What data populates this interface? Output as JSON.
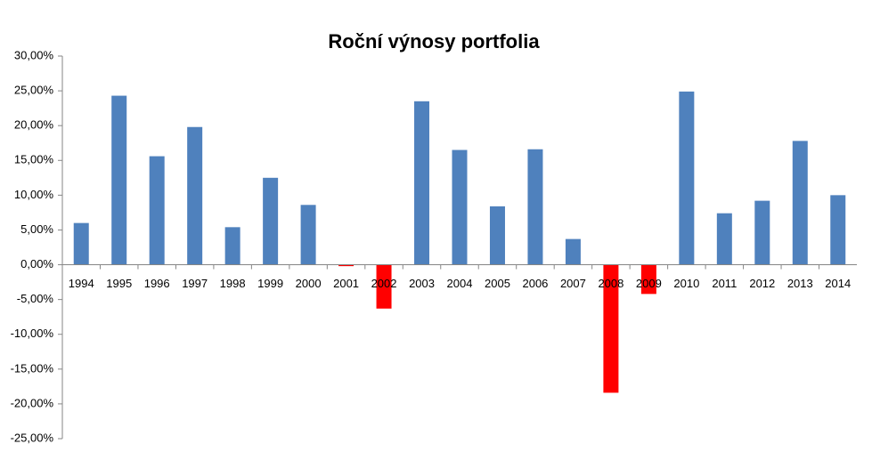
{
  "chart_data": {
    "type": "bar",
    "title": "Roční výnosy portfolia",
    "categories": [
      "1994",
      "1995",
      "1996",
      "1997",
      "1998",
      "1999",
      "2000",
      "2001",
      "2002",
      "2003",
      "2004",
      "2005",
      "2006",
      "2007",
      "2008",
      "2009",
      "2010",
      "2011",
      "2012",
      "2013",
      "2014"
    ],
    "values": [
      6.0,
      24.3,
      15.6,
      19.8,
      5.4,
      12.5,
      8.6,
      -0.2,
      -6.3,
      23.5,
      16.5,
      8.4,
      16.6,
      3.7,
      -18.4,
      -4.2,
      24.9,
      7.4,
      9.2,
      17.8,
      10.0
    ],
    "color": "#4f81bd",
    "negative_color": "#ff0000",
    "ylim": [
      -25,
      30
    ],
    "yticks": [
      {
        "value": -25,
        "label": "-25,00%"
      },
      {
        "value": -20,
        "label": "-20,00%"
      },
      {
        "value": -15,
        "label": "-15,00%"
      },
      {
        "value": -10,
        "label": "-10,00%"
      },
      {
        "value": -5,
        "label": "-5,00%"
      },
      {
        "value": 0,
        "label": "0,00%"
      },
      {
        "value": 5,
        "label": "5,00%"
      },
      {
        "value": 10,
        "label": "10,00%"
      },
      {
        "value": 15,
        "label": "15,00%"
      },
      {
        "value": 20,
        "label": "20,00%"
      },
      {
        "value": 25,
        "label": "25,00%"
      },
      {
        "value": 30,
        "label": "30,00%"
      }
    ],
    "grid": false
  }
}
